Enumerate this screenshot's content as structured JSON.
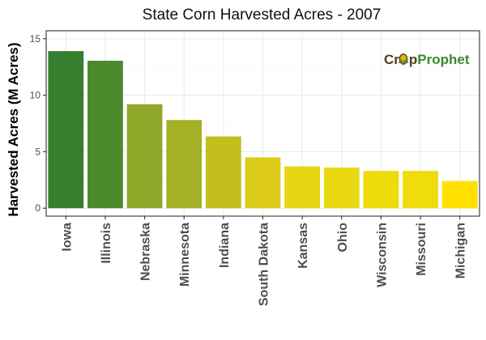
{
  "chart_data": {
    "type": "bar",
    "title": "State Corn Harvested Acres - 2007",
    "ylabel": "Harvested Acres (M Acres)",
    "xlabel": "",
    "categories": [
      "Iowa",
      "Illinois",
      "Nebraska",
      "Minnesota",
      "Indiana",
      "South Dakota",
      "Kansas",
      "Ohio",
      "Wisconsin",
      "Missouri",
      "Michigan"
    ],
    "values": [
      13.9,
      13.05,
      9.2,
      7.8,
      6.35,
      4.5,
      3.7,
      3.6,
      3.3,
      3.3,
      2.4
    ],
    "ylim": [
      -0.7,
      15.7
    ],
    "yticks": [
      0,
      5,
      10,
      15
    ],
    "grid": true,
    "legend": "none",
    "colors": [
      "#357F2F",
      "#4B8A2D",
      "#8FA82A",
      "#A5B125",
      "#C3BF1F",
      "#DDCD19",
      "#E6D513",
      "#E9D811",
      "#EFDA0C",
      "#F0DB0B",
      "#FFE100"
    ]
  },
  "logo": {
    "text_a": "Cr",
    "text_b": "p",
    "text_c": "Prophet",
    "color_dark": "#5a3a1a",
    "color_green": "#3a8a2e"
  }
}
